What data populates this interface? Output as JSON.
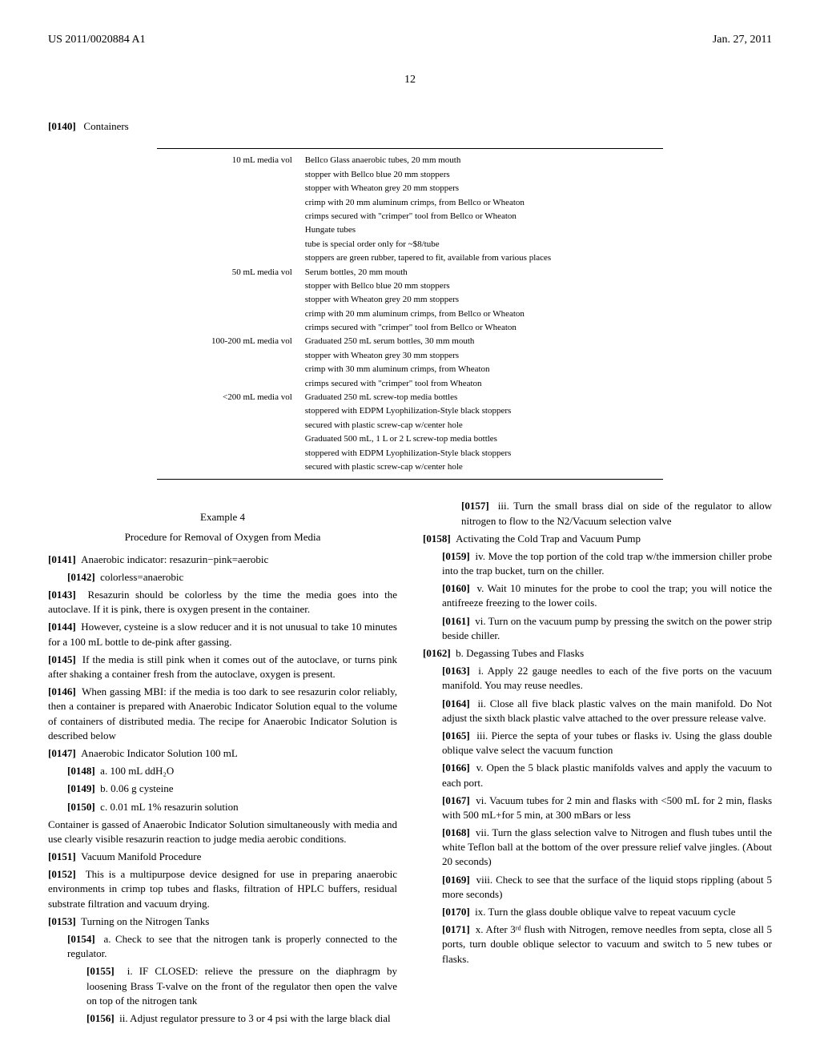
{
  "header": {
    "pub_number": "US 2011/0020884 A1",
    "pub_date": "Jan. 27, 2011"
  },
  "page_number": "12",
  "section_title": {
    "num": "[0140]",
    "text": "Containers"
  },
  "container_table": {
    "rows": [
      {
        "label": "10 mL media vol",
        "lines": [
          "Bellco Glass anaerobic tubes, 20 mm mouth",
          "stopper with Bellco blue 20 mm stoppers",
          "stopper with Wheaton grey 20 mm stoppers",
          "crimp with 20 mm aluminum crimps, from Bellco or Wheaton",
          "crimps secured with \"crimper\" tool from Bellco or Wheaton",
          "Hungate tubes",
          "tube is special order only for ~$8/tube",
          "stoppers are green rubber, tapered to fit, available from various places"
        ]
      },
      {
        "label": "50 mL media vol",
        "lines": [
          "Serum bottles, 20 mm mouth",
          "stopper with Bellco blue 20 mm stoppers",
          "stopper with Wheaton grey 20 mm stoppers",
          "crimp with 20 mm aluminum crimps, from Bellco or Wheaton",
          "crimps secured with \"crimper\" tool from Bellco or Wheaton"
        ]
      },
      {
        "label": "100-200 mL media vol",
        "lines": [
          "Graduated 250 mL serum bottles, 30 mm mouth",
          "stopper with Wheaton grey 30 mm stoppers",
          "crimp with 30 mm aluminum crimps, from Wheaton",
          "crimps secured with \"crimper\" tool from Wheaton"
        ]
      },
      {
        "label": "<200 mL media vol",
        "lines": [
          "Graduated 250 mL screw-top media bottles",
          "stoppered with EDPM Lyophilization-Style black stoppers",
          "secured with plastic screw-cap w/center hole",
          "Graduated 500 mL, 1 L or 2 L screw-top media bottles",
          "stoppered with EDPM Lyophilization-Style black stoppers",
          "secured with plastic screw-cap w/center hole"
        ]
      }
    ]
  },
  "example": {
    "title": "Example 4",
    "subtitle": "Procedure for Removal of Oxygen from Media"
  },
  "left_paras": [
    {
      "num": "[0141]",
      "indent": 0,
      "text": "Anaerobic indicator: resazurin−pink=aerobic"
    },
    {
      "num": "[0142]",
      "indent": 1,
      "text": "colorless=anaerobic"
    },
    {
      "num": "[0143]",
      "indent": 0,
      "text": "Resazurin should be colorless by the time the media goes into the autoclave. If it is pink, there is oxygen present in the container."
    },
    {
      "num": "[0144]",
      "indent": 0,
      "text": "However, cysteine is a slow reducer and it is not unusual to take 10 minutes for a 100 mL bottle to de-pink after gassing."
    },
    {
      "num": "[0145]",
      "indent": 0,
      "text": "If the media is still pink when it comes out of the autoclave, or turns pink after shaking a container fresh from the autoclave, oxygen is present."
    },
    {
      "num": "[0146]",
      "indent": 0,
      "text": "When gassing MBI: if the media is too dark to see resazurin color reliably, then a container is prepared with Anaerobic Indicator Solution equal to the volume of containers of distributed media. The recipe for Anaerobic Indicator Solution is described below"
    },
    {
      "num": "[0147]",
      "indent": 0,
      "text": "Anaerobic Indicator Solution 100 mL"
    },
    {
      "num": "[0148]",
      "indent": 1,
      "text": "a. 100 mL ddH₂O"
    },
    {
      "num": "[0149]",
      "indent": 1,
      "text": "b. 0.06 g cysteine"
    },
    {
      "num": "[0150]",
      "indent": 1,
      "text": "c. 0.01 mL 1% resazurin solution"
    },
    {
      "num": "",
      "indent": 0,
      "text": "Container is gassed of Anaerobic Indicator Solution simultaneously with media and use clearly visible resazurin reaction to judge media aerobic conditions."
    },
    {
      "num": "[0151]",
      "indent": 0,
      "text": "Vacuum Manifold Procedure"
    },
    {
      "num": "[0152]",
      "indent": 0,
      "text": "This is a multipurpose device designed for use in preparing anaerobic environments in crimp top tubes and flasks, filtration of HPLC buffers, residual substrate filtration and vacuum drying."
    },
    {
      "num": "[0153]",
      "indent": 0,
      "text": "Turning on the Nitrogen Tanks"
    },
    {
      "num": "[0154]",
      "indent": 1,
      "text": "a. Check to see that the nitrogen tank is properly connected to the regulator."
    },
    {
      "num": "[0155]",
      "indent": 2,
      "text": "i. IF CLOSED: relieve the pressure on the diaphragm by loosening Brass T-valve on the front of the regulator then open the valve on top of the nitrogen tank"
    },
    {
      "num": "[0156]",
      "indent": 2,
      "text": "ii. Adjust regulator pressure to 3 or 4 psi with the large black dial"
    }
  ],
  "right_paras": [
    {
      "num": "[0157]",
      "indent": 2,
      "text": "iii. Turn the small brass dial on side of the regulator to allow nitrogen to flow to the N2/Vacuum selection valve"
    },
    {
      "num": "[0158]",
      "indent": 0,
      "text": "Activating the Cold Trap and Vacuum Pump"
    },
    {
      "num": "[0159]",
      "indent": 1,
      "text": "iv. Move the top portion of the cold trap w/the immersion chiller probe into the trap bucket, turn on the chiller."
    },
    {
      "num": "[0160]",
      "indent": 1,
      "text": "v. Wait 10 minutes for the probe to cool the trap; you will notice the antifreeze freezing to the lower coils."
    },
    {
      "num": "[0161]",
      "indent": 1,
      "text": "vi. Turn on the vacuum pump by pressing the switch on the power strip beside chiller."
    },
    {
      "num": "[0162]",
      "indent": 0,
      "text": "b. Degassing Tubes and Flasks"
    },
    {
      "num": "[0163]",
      "indent": 1,
      "text": "i. Apply 22 gauge needles to each of the five ports on the vacuum manifold. You may reuse needles."
    },
    {
      "num": "[0164]",
      "indent": 1,
      "text": "ii. Close all five black plastic valves on the main manifold. Do Not adjust the sixth black plastic valve attached to the over pressure release valve."
    },
    {
      "num": "[0165]",
      "indent": 1,
      "text": "iii. Pierce the septa of your tubes or flasks iv. Using the glass double oblique valve select the vacuum function"
    },
    {
      "num": "[0166]",
      "indent": 1,
      "text": "v. Open the 5 black plastic manifolds valves and apply the vacuum to each port."
    },
    {
      "num": "[0167]",
      "indent": 1,
      "text": "vi. Vacuum tubes for 2 min and flasks with <500 mL for 2 min, flasks with 500 mL+for 5 min, at 300 mBars or less"
    },
    {
      "num": "[0168]",
      "indent": 1,
      "text": "vii. Turn the glass selection valve to Nitrogen and flush tubes until the white Teflon ball at the bottom of the over pressure relief valve jingles. (About 20 seconds)"
    },
    {
      "num": "[0169]",
      "indent": 1,
      "text": "viii. Check to see that the surface of the liquid stops rippling (about 5 more seconds)"
    },
    {
      "num": "[0170]",
      "indent": 1,
      "text": "ix. Turn the glass double oblique valve to repeat vacuum cycle"
    },
    {
      "num": "[0171]",
      "indent": 1,
      "text": "x. After 3ʳᵈ flush with Nitrogen, remove needles from septa, close all 5 ports, turn double oblique selector to vacuum and switch to 5 new tubes or flasks."
    }
  ]
}
